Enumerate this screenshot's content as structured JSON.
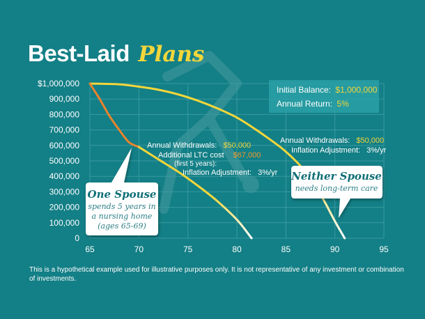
{
  "title": {
    "part1": "Best-Laid",
    "part2": "Plans"
  },
  "colors": {
    "background": "#137f86",
    "grid": "#3a9aa0",
    "line_none": "#f3d63b",
    "line_one_early": "#e9832b",
    "accent_yellow": "#f3d63b",
    "accent_orange": "#f29a2e"
  },
  "chart_data": {
    "type": "line",
    "x": [
      65,
      70,
      75,
      80,
      85,
      90,
      95
    ],
    "x_ticks": [
      "65",
      "70",
      "75",
      "80",
      "85",
      "90",
      "95"
    ],
    "y_ticks": [
      "$1,000,000",
      "900,000",
      "800,000",
      "700,000",
      "600,000",
      "500,000",
      "400,000",
      "300,000",
      "200,000",
      "100,000",
      "0"
    ],
    "xlim": [
      65,
      95
    ],
    "ylim": [
      0,
      1000000
    ],
    "grid": true,
    "series": [
      {
        "key": "neither",
        "points": [
          [
            65,
            1000000
          ],
          [
            68,
            995000
          ],
          [
            70,
            980000
          ],
          [
            72,
            960000
          ],
          [
            74,
            930000
          ],
          [
            76,
            890000
          ],
          [
            78,
            840000
          ],
          [
            80,
            780000
          ],
          [
            82,
            700000
          ],
          [
            84,
            610000
          ],
          [
            85,
            560000
          ],
          [
            86,
            500000
          ],
          [
            87,
            430000
          ],
          [
            88,
            340000
          ],
          [
            89,
            230000
          ],
          [
            90,
            110000
          ],
          [
            91,
            0
          ]
        ]
      },
      {
        "key": "one",
        "points": [
          [
            65,
            1000000
          ],
          [
            66,
            900000
          ],
          [
            67,
            790000
          ],
          [
            68,
            700000
          ],
          [
            69,
            620000
          ],
          [
            70,
            590000
          ],
          [
            72,
            510000
          ],
          [
            74,
            430000
          ],
          [
            76,
            340000
          ],
          [
            78,
            240000
          ],
          [
            80,
            120000
          ],
          [
            81.5,
            0
          ]
        ]
      }
    ]
  },
  "info_box": {
    "balance_label": "Initial Balance:",
    "balance_value": "$1,000,000",
    "return_label": "Annual Return:",
    "return_value": "5%"
  },
  "ann_one": {
    "withdraw_label": "Annual Withdrawals:",
    "withdraw_value": "$50,000",
    "ltc_label": "Additional LTC cost",
    "ltc_value": "$67,000",
    "ltc_note": "(first 5 years):",
    "inflation_label": "Inflation Adjustment:",
    "inflation_value": "3%/yr"
  },
  "ann_neither": {
    "withdraw_label": "Annual Withdrawals:",
    "withdraw_value": "$50,000",
    "inflation_label": "Inflation Adjustment:",
    "inflation_value": "3%/yr"
  },
  "bubble_one": {
    "title": "One Spouse",
    "line1": "spends 5 years in",
    "line2": "a nursing home",
    "line3": "(ages 65-69)"
  },
  "bubble_neither": {
    "title": "Neither Spouse",
    "line1": "needs long-term care"
  },
  "disclaimer": {
    "line1": "This is a hypothetical example used for illustrative purposes only. It is not representative of any investment or combination",
    "line2": "of investments."
  }
}
